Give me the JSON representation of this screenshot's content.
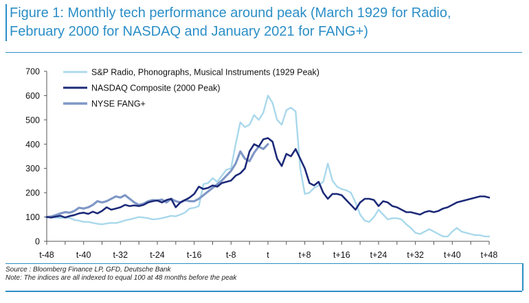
{
  "title": {
    "line1": "Figure 1: Monthly tech performance around peak (March 1929 for Radio,",
    "line2": "February 2000 for NASDAQ and January 2021 for FANG+)"
  },
  "footer": {
    "source": "Source : Bloomberg Finance LP, GFD, Deutsche Bank",
    "note": "Note: The indices are all indexed to equal 100 at 48 months before the peak"
  },
  "colors": {
    "accent": "#2a8ec7",
    "radio": "#a9d8ec",
    "nasdaq": "#1c2a78",
    "fang": "#7f97c6"
  },
  "chart_data": {
    "type": "line",
    "x_tick_labels": [
      "t-48",
      "t-40",
      "t-32",
      "t-24",
      "t-16",
      "t-8",
      "t",
      "t+8",
      "t+16",
      "t+24",
      "t+32",
      "t+40",
      "t+48"
    ],
    "y_ticks": [
      0,
      100,
      200,
      300,
      400,
      500,
      600,
      700
    ],
    "xlim": [
      -48,
      48
    ],
    "ylim": [
      0,
      700
    ],
    "legend_position": "top-left",
    "series": [
      {
        "name": "S&P Radio, Phonographs, Musical Instruments (1929 Peak)",
        "x": [
          -48,
          -47,
          -46,
          -45,
          -44,
          -43,
          -42,
          -41,
          -40,
          -39,
          -38,
          -37,
          -36,
          -35,
          -34,
          -33,
          -32,
          -31,
          -30,
          -29,
          -28,
          -27,
          -26,
          -25,
          -24,
          -23,
          -22,
          -21,
          -20,
          -19,
          -18,
          -17,
          -16,
          -15,
          -14,
          -13,
          -12,
          -11,
          -10,
          -9,
          -8,
          -7,
          -6,
          -5,
          -4,
          -3,
          -2,
          -1,
          0,
          1,
          2,
          3,
          4,
          5,
          6,
          7,
          8,
          9,
          10,
          11,
          12,
          13,
          14,
          15,
          16,
          17,
          18,
          19,
          20,
          21,
          22,
          23,
          24,
          25,
          26,
          27,
          28,
          29,
          30,
          31,
          32,
          33,
          34,
          35,
          36,
          37,
          38,
          39,
          40,
          41,
          42,
          43,
          44,
          45,
          46,
          47,
          48
        ],
        "values": [
          100,
          99,
          97,
          96,
          98,
          96,
          88,
          85,
          80,
          80,
          76,
          72,
          70,
          73,
          76,
          75,
          80,
          86,
          90,
          95,
          100,
          98,
          95,
          90,
          92,
          95,
          100,
          105,
          103,
          110,
          118,
          135,
          138,
          145,
          235,
          240,
          260,
          245,
          270,
          295,
          300,
          400,
          490,
          470,
          480,
          520,
          500,
          530,
          600,
          570,
          500,
          480,
          540,
          550,
          535,
          300,
          195,
          200,
          220,
          230,
          245,
          320,
          250,
          225,
          215,
          210,
          200,
          160,
          110,
          85,
          80,
          100,
          130,
          110,
          90,
          95,
          95,
          90,
          70,
          55,
          35,
          30,
          40,
          50,
          40,
          30,
          20,
          20,
          40,
          55,
          40,
          35,
          30,
          25,
          25,
          20,
          20
        ]
      },
      {
        "name": "NASDAQ Composite (2000 Peak)",
        "x": [
          -48,
          -47,
          -46,
          -45,
          -44,
          -43,
          -42,
          -41,
          -40,
          -39,
          -38,
          -37,
          -36,
          -35,
          -34,
          -33,
          -32,
          -31,
          -30,
          -29,
          -28,
          -27,
          -26,
          -25,
          -24,
          -23,
          -22,
          -21,
          -20,
          -19,
          -18,
          -17,
          -16,
          -15,
          -14,
          -13,
          -12,
          -11,
          -10,
          -9,
          -8,
          -7,
          -6,
          -5,
          -4,
          -3,
          -2,
          -1,
          0,
          1,
          2,
          3,
          4,
          5,
          6,
          7,
          8,
          9,
          10,
          11,
          12,
          13,
          14,
          15,
          16,
          17,
          18,
          19,
          20,
          21,
          22,
          23,
          24,
          25,
          26,
          27,
          28,
          29,
          30,
          31,
          32,
          33,
          34,
          35,
          36,
          37,
          38,
          39,
          40,
          41,
          42,
          43,
          44,
          45,
          46,
          47,
          48
        ],
        "values": [
          100,
          98,
          102,
          105,
          98,
          104,
          108,
          115,
          118,
          113,
          122,
          115,
          125,
          140,
          130,
          135,
          140,
          150,
          145,
          148,
          145,
          150,
          160,
          165,
          168,
          160,
          170,
          175,
          140,
          160,
          170,
          180,
          195,
          225,
          215,
          220,
          230,
          225,
          240,
          245,
          250,
          270,
          280,
          300,
          370,
          400,
          390,
          420,
          425,
          410,
          340,
          310,
          360,
          350,
          380,
          340,
          300,
          240,
          230,
          245,
          200,
          175,
          195,
          195,
          190,
          170,
          150,
          130,
          160,
          175,
          175,
          170,
          145,
          165,
          160,
          145,
          140,
          130,
          120,
          120,
          115,
          110,
          120,
          125,
          120,
          125,
          135,
          140,
          150,
          160,
          165,
          170,
          175,
          180,
          185,
          185,
          180
        ]
      },
      {
        "name": "NYSE FANG+",
        "x": [
          -48,
          -47,
          -46,
          -45,
          -44,
          -43,
          -42,
          -41,
          -40,
          -39,
          -38,
          -37,
          -36,
          -35,
          -34,
          -33,
          -32,
          -31,
          -30,
          -29,
          -28,
          -27,
          -26,
          -25,
          -24,
          -23,
          -22,
          -21,
          -20,
          -19,
          -18,
          -17,
          -16,
          -15,
          -14,
          -13,
          -12,
          -11,
          -10,
          -9,
          -8,
          -7,
          -6,
          -5,
          -4,
          -3,
          -2,
          -1,
          0
        ],
        "values": [
          100,
          102,
          108,
          115,
          120,
          118,
          125,
          138,
          135,
          140,
          150,
          165,
          160,
          165,
          175,
          185,
          180,
          190,
          175,
          160,
          150,
          155,
          165,
          170,
          168,
          172,
          160,
          175,
          165,
          160,
          170,
          165,
          165,
          175,
          190,
          205,
          220,
          235,
          250,
          270,
          290,
          320,
          370,
          340,
          330,
          365,
          390,
          380,
          400
        ]
      }
    ]
  }
}
